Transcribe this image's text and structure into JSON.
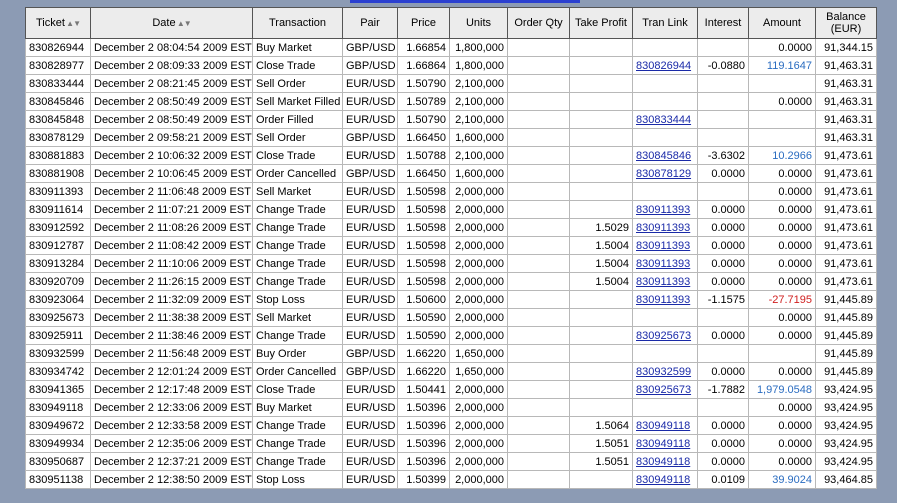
{
  "table": {
    "header": [
      "Ticket",
      "Date",
      "Transaction",
      "Pair",
      "Price",
      "Units",
      "Order Qty",
      "Take Profit",
      "Tran Link",
      "Interest",
      "Amount",
      "Balance (EUR)"
    ],
    "rows": [
      [
        "830826944",
        "December 2 08:04:54 2009 EST",
        "Buy Market",
        "GBP/USD",
        "1.66854",
        "1,800,000",
        null,
        null,
        null,
        null,
        "0.0000",
        "91,344.15"
      ],
      [
        "830828977",
        "December 2 08:09:33 2009 EST",
        "Close Trade",
        "GBP/USD",
        "1.66864",
        "1,800,000",
        null,
        null,
        "830826944",
        "-0.0880",
        "119.1647",
        "91,463.31"
      ],
      [
        "830833444",
        "December 2 08:21:45 2009 EST",
        "Sell Order",
        "EUR/USD",
        "1.50790",
        "2,100,000",
        null,
        null,
        null,
        null,
        null,
        "91,463.31"
      ],
      [
        "830845846",
        "December 2 08:50:49 2009 EST",
        "Sell Market Filled",
        "EUR/USD",
        "1.50789",
        "2,100,000",
        null,
        null,
        null,
        null,
        "0.0000",
        "91,463.31"
      ],
      [
        "830845848",
        "December 2 08:50:49 2009 EST",
        "Order Filled",
        "EUR/USD",
        "1.50790",
        "2,100,000",
        null,
        null,
        "830833444",
        null,
        null,
        "91,463.31"
      ],
      [
        "830878129",
        "December 2 09:58:21 2009 EST",
        "Sell Order",
        "GBP/USD",
        "1.66450",
        "1,600,000",
        null,
        null,
        null,
        null,
        null,
        "91,463.31"
      ],
      [
        "830881883",
        "December 2 10:06:32 2009 EST",
        "Close Trade",
        "EUR/USD",
        "1.50788",
        "2,100,000",
        null,
        null,
        "830845846",
        "-3.6302",
        "10.2966",
        "91,473.61"
      ],
      [
        "830881908",
        "December 2 10:06:45 2009 EST",
        "Order Cancelled",
        "GBP/USD",
        "1.66450",
        "1,600,000",
        null,
        null,
        "830878129",
        "0.0000",
        "0.0000",
        "91,473.61"
      ],
      [
        "830911393",
        "December 2 11:06:48 2009 EST",
        "Sell Market",
        "EUR/USD",
        "1.50598",
        "2,000,000",
        null,
        null,
        null,
        null,
        "0.0000",
        "91,473.61"
      ],
      [
        "830911614",
        "December 2 11:07:21 2009 EST",
        "Change Trade",
        "EUR/USD",
        "1.50598",
        "2,000,000",
        null,
        null,
        "830911393",
        "0.0000",
        "0.0000",
        "91,473.61"
      ],
      [
        "830912592",
        "December 2 11:08:26 2009 EST",
        "Change Trade",
        "EUR/USD",
        "1.50598",
        "2,000,000",
        null,
        "1.5029",
        "830911393",
        "0.0000",
        "0.0000",
        "91,473.61"
      ],
      [
        "830912787",
        "December 2 11:08:42 2009 EST",
        "Change Trade",
        "EUR/USD",
        "1.50598",
        "2,000,000",
        null,
        "1.5004",
        "830911393",
        "0.0000",
        "0.0000",
        "91,473.61"
      ],
      [
        "830913284",
        "December 2 11:10:06 2009 EST",
        "Change Trade",
        "EUR/USD",
        "1.50598",
        "2,000,000",
        null,
        "1.5004",
        "830911393",
        "0.0000",
        "0.0000",
        "91,473.61"
      ],
      [
        "830920709",
        "December 2 11:26:15 2009 EST",
        "Change Trade",
        "EUR/USD",
        "1.50598",
        "2,000,000",
        null,
        "1.5004",
        "830911393",
        "0.0000",
        "0.0000",
        "91,473.61"
      ],
      [
        "830923064",
        "December 2 11:32:09 2009 EST",
        "Stop Loss",
        "EUR/USD",
        "1.50600",
        "2,000,000",
        null,
        null,
        "830911393",
        "-1.1575",
        "-27.7195",
        "91,445.89"
      ],
      [
        "830925673",
        "December 2 11:38:38 2009 EST",
        "Sell Market",
        "EUR/USD",
        "1.50590",
        "2,000,000",
        null,
        null,
        null,
        null,
        "0.0000",
        "91,445.89"
      ],
      [
        "830925911",
        "December 2 11:38:46 2009 EST",
        "Change Trade",
        "EUR/USD",
        "1.50590",
        "2,000,000",
        null,
        null,
        "830925673",
        "0.0000",
        "0.0000",
        "91,445.89"
      ],
      [
        "830932599",
        "December 2 11:56:48 2009 EST",
        "Buy Order",
        "GBP/USD",
        "1.66220",
        "1,650,000",
        null,
        null,
        null,
        null,
        null,
        "91,445.89"
      ],
      [
        "830934742",
        "December 2 12:01:24 2009 EST",
        "Order Cancelled",
        "GBP/USD",
        "1.66220",
        "1,650,000",
        null,
        null,
        "830932599",
        "0.0000",
        "0.0000",
        "91,445.89"
      ],
      [
        "830941365",
        "December 2 12:17:48 2009 EST",
        "Close Trade",
        "EUR/USD",
        "1.50441",
        "2,000,000",
        null,
        null,
        "830925673",
        "-1.7882",
        "1,979.0548",
        "93,424.95"
      ],
      [
        "830949118",
        "December 2 12:33:06 2009 EST",
        "Buy Market",
        "EUR/USD",
        "1.50396",
        "2,000,000",
        null,
        null,
        null,
        null,
        "0.0000",
        "93,424.95"
      ],
      [
        "830949672",
        "December 2 12:33:58 2009 EST",
        "Change Trade",
        "EUR/USD",
        "1.50396",
        "2,000,000",
        null,
        "1.5064",
        "830949118",
        "0.0000",
        "0.0000",
        "93,424.95"
      ],
      [
        "830949934",
        "December 2 12:35:06 2009 EST",
        "Change Trade",
        "EUR/USD",
        "1.50396",
        "2,000,000",
        null,
        "1.5051",
        "830949118",
        "0.0000",
        "0.0000",
        "93,424.95"
      ],
      [
        "830950687",
        "December 2 12:37:21 2009 EST",
        "Change Trade",
        "EUR/USD",
        "1.50396",
        "2,000,000",
        null,
        "1.5051",
        "830949118",
        "0.0000",
        "0.0000",
        "93,424.95"
      ],
      [
        "830951138",
        "December 2 12:38:50 2009 EST",
        "Stop Loss",
        "EUR/USD",
        "1.50399",
        "2,000,000",
        null,
        null,
        "830949118",
        "0.0109",
        "39.9024",
        "93,464.85"
      ]
    ]
  }
}
